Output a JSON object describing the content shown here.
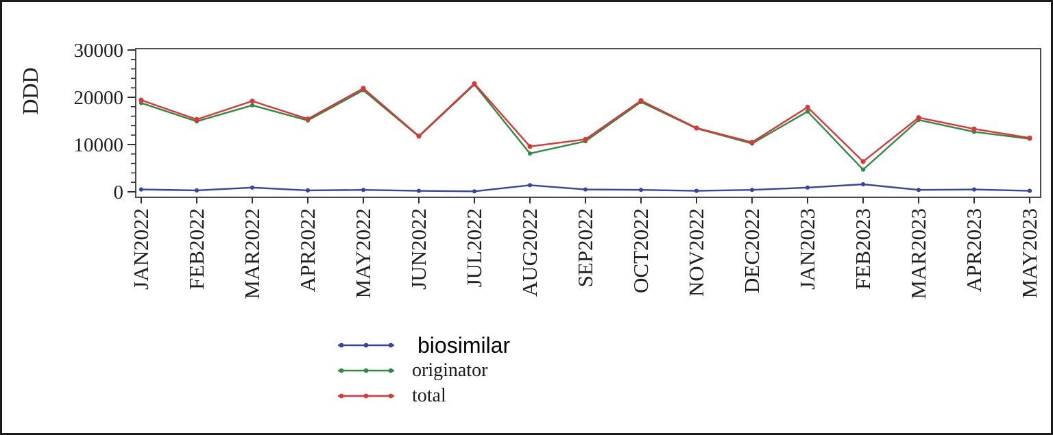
{
  "figure": {
    "background_color": "#ffffff",
    "border_color": "#1b1b1b"
  },
  "y_axis": {
    "title": "DDD",
    "tick_labels": [
      "0",
      "10000",
      "20000",
      "30000"
    ]
  },
  "legend": {
    "items": [
      {
        "label": "biosimilar",
        "color": "#3444a5",
        "emphasis": true
      },
      {
        "label": "originator",
        "color": "#2e8b44",
        "emphasis": false
      },
      {
        "label": "total",
        "color": "#e33434",
        "emphasis": false
      }
    ]
  },
  "chart_data": {
    "type": "line",
    "title": "",
    "xlabel": "",
    "ylabel": "DDD",
    "ylim": [
      0,
      30000
    ],
    "y_major_ticks": [
      0,
      10000,
      20000,
      30000
    ],
    "y_minor_tick_step": 2000,
    "grid": "off",
    "legend_position": "bottom-center",
    "x_tick_label_rotation": 90,
    "categories": [
      "JAN2022",
      "FEB2022",
      "MAR2022",
      "APR2022",
      "MAY2022",
      "JUN2022",
      "JUL2022",
      "AUG2022",
      "SEP2022",
      "OCT2022",
      "NOV2022",
      "DEC2022",
      "JAN2023",
      "FEB2023",
      "MAR2023",
      "APR2023",
      "MAY2023"
    ],
    "series": [
      {
        "name": "biosimilar",
        "color": "#3444a5",
        "values": [
          500,
          300,
          900,
          300,
          400,
          200,
          100,
          1400,
          500,
          400,
          200,
          400,
          900,
          1600,
          400,
          500,
          200
        ]
      },
      {
        "name": "originator",
        "color": "#2e8b44",
        "values": [
          18800,
          14900,
          18300,
          15100,
          21500,
          11700,
          22700,
          8100,
          10700,
          19000,
          13400,
          10200,
          17000,
          4700,
          15200,
          12700,
          11200
        ]
      },
      {
        "name": "total",
        "color": "#e33434",
        "values": [
          19400,
          15300,
          19200,
          15400,
          21900,
          11800,
          22900,
          9600,
          11100,
          19300,
          13500,
          10500,
          17900,
          6400,
          15700,
          13300,
          11400
        ]
      }
    ]
  }
}
